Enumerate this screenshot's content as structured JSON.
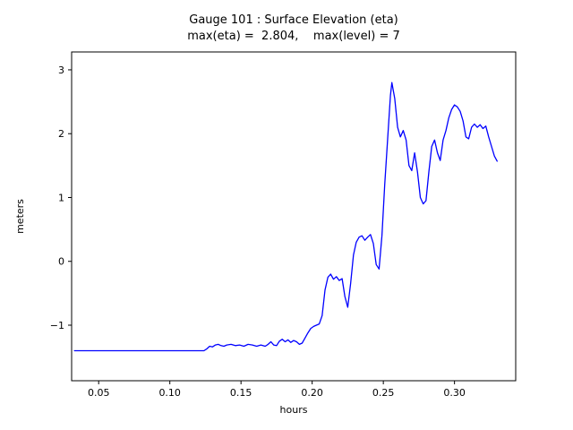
{
  "chart_data": {
    "type": "line",
    "title": "Gauge 101 : Surface Elevation (eta)",
    "subtitle": "max(eta) =  2.804,    max(level) = 7",
    "xlabel": "hours",
    "ylabel": "meters",
    "xlim": [
      0.031,
      0.343
    ],
    "ylim": [
      -1.87,
      3.28
    ],
    "xticks": [
      0.05,
      0.1,
      0.15,
      0.2,
      0.25,
      0.3
    ],
    "xtick_labels": [
      "0.05",
      "0.10",
      "0.15",
      "0.20",
      "0.25",
      "0.30"
    ],
    "yticks": [
      -1,
      0,
      1,
      2,
      3
    ],
    "ytick_labels": [
      "−1",
      "0",
      "1",
      "2",
      "3"
    ],
    "grid": false,
    "legend": "none",
    "line_color": "#0000ff",
    "frame_color": "#000000",
    "max_eta": 2.804,
    "max_level": 7,
    "series": [
      {
        "name": "eta",
        "points": [
          [
            0.033,
            -1.4
          ],
          [
            0.05,
            -1.4
          ],
          [
            0.07,
            -1.4
          ],
          [
            0.09,
            -1.4
          ],
          [
            0.11,
            -1.4
          ],
          [
            0.124,
            -1.4
          ],
          [
            0.126,
            -1.37
          ],
          [
            0.128,
            -1.33
          ],
          [
            0.13,
            -1.34
          ],
          [
            0.132,
            -1.31
          ],
          [
            0.134,
            -1.3
          ],
          [
            0.136,
            -1.32
          ],
          [
            0.138,
            -1.33
          ],
          [
            0.14,
            -1.31
          ],
          [
            0.143,
            -1.3
          ],
          [
            0.146,
            -1.32
          ],
          [
            0.149,
            -1.31
          ],
          [
            0.152,
            -1.33
          ],
          [
            0.155,
            -1.3
          ],
          [
            0.158,
            -1.31
          ],
          [
            0.161,
            -1.33
          ],
          [
            0.164,
            -1.31
          ],
          [
            0.167,
            -1.33
          ],
          [
            0.169,
            -1.3
          ],
          [
            0.171,
            -1.26
          ],
          [
            0.173,
            -1.31
          ],
          [
            0.175,
            -1.32
          ],
          [
            0.177,
            -1.25
          ],
          [
            0.179,
            -1.22
          ],
          [
            0.181,
            -1.26
          ],
          [
            0.183,
            -1.23
          ],
          [
            0.185,
            -1.27
          ],
          [
            0.187,
            -1.24
          ],
          [
            0.189,
            -1.26
          ],
          [
            0.191,
            -1.3
          ],
          [
            0.193,
            -1.28
          ],
          [
            0.195,
            -1.2
          ],
          [
            0.197,
            -1.12
          ],
          [
            0.199,
            -1.05
          ],
          [
            0.201,
            -1.02
          ],
          [
            0.203,
            -1.0
          ],
          [
            0.205,
            -0.98
          ],
          [
            0.207,
            -0.85
          ],
          [
            0.209,
            -0.45
          ],
          [
            0.211,
            -0.25
          ],
          [
            0.213,
            -0.2
          ],
          [
            0.215,
            -0.28
          ],
          [
            0.217,
            -0.24
          ],
          [
            0.219,
            -0.3
          ],
          [
            0.221,
            -0.27
          ],
          [
            0.223,
            -0.55
          ],
          [
            0.225,
            -0.72
          ],
          [
            0.227,
            -0.35
          ],
          [
            0.229,
            0.1
          ],
          [
            0.231,
            0.3
          ],
          [
            0.233,
            0.38
          ],
          [
            0.235,
            0.4
          ],
          [
            0.237,
            0.33
          ],
          [
            0.239,
            0.38
          ],
          [
            0.241,
            0.42
          ],
          [
            0.243,
            0.28
          ],
          [
            0.245,
            -0.05
          ],
          [
            0.247,
            -0.12
          ],
          [
            0.249,
            0.4
          ],
          [
            0.251,
            1.2
          ],
          [
            0.253,
            1.9
          ],
          [
            0.255,
            2.6
          ],
          [
            0.256,
            2.8
          ],
          [
            0.258,
            2.55
          ],
          [
            0.26,
            2.1
          ],
          [
            0.262,
            1.95
          ],
          [
            0.264,
            2.05
          ],
          [
            0.266,
            1.9
          ],
          [
            0.268,
            1.5
          ],
          [
            0.27,
            1.42
          ],
          [
            0.272,
            1.7
          ],
          [
            0.274,
            1.4
          ],
          [
            0.276,
            1.0
          ],
          [
            0.278,
            0.9
          ],
          [
            0.28,
            0.95
          ],
          [
            0.282,
            1.4
          ],
          [
            0.284,
            1.8
          ],
          [
            0.286,
            1.9
          ],
          [
            0.288,
            1.7
          ],
          [
            0.29,
            1.58
          ],
          [
            0.292,
            1.9
          ],
          [
            0.294,
            2.05
          ],
          [
            0.296,
            2.25
          ],
          [
            0.298,
            2.38
          ],
          [
            0.3,
            2.45
          ],
          [
            0.302,
            2.42
          ],
          [
            0.304,
            2.35
          ],
          [
            0.306,
            2.2
          ],
          [
            0.308,
            1.95
          ],
          [
            0.31,
            1.92
          ],
          [
            0.312,
            2.1
          ],
          [
            0.314,
            2.15
          ],
          [
            0.316,
            2.1
          ],
          [
            0.318,
            2.14
          ],
          [
            0.32,
            2.08
          ],
          [
            0.322,
            2.12
          ],
          [
            0.324,
            1.95
          ],
          [
            0.326,
            1.8
          ],
          [
            0.328,
            1.65
          ],
          [
            0.33,
            1.57
          ]
        ]
      }
    ]
  }
}
